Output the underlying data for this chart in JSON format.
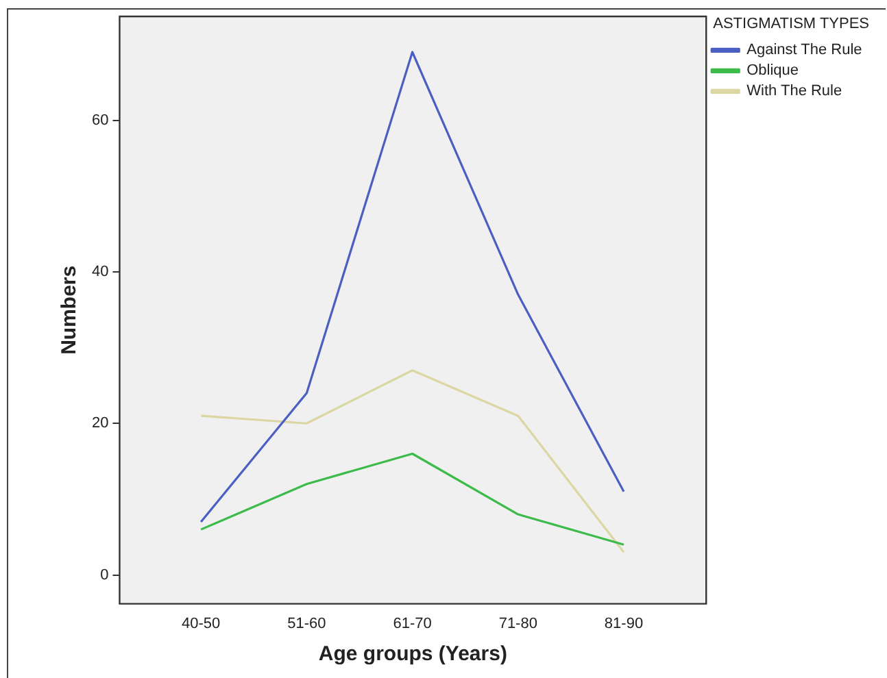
{
  "chart_data": {
    "type": "line",
    "xlabel": "Age groups (Years)",
    "ylabel": "Numbers",
    "legend_title": "ASTIGMATISM TYPES",
    "categories": [
      "40-50",
      "51-60",
      "61-70",
      "71-80",
      "81-90"
    ],
    "series": [
      {
        "name": "Against The Rule",
        "color": "#4a5fc1",
        "values": [
          7,
          24,
          69,
          37,
          11
        ]
      },
      {
        "name": "Oblique",
        "color": "#3dbb4a",
        "values": [
          6,
          12,
          16,
          8,
          4
        ]
      },
      {
        "name": "With The Rule",
        "color": "#dcd6a3",
        "values": [
          21,
          20,
          27,
          21,
          3
        ]
      }
    ],
    "ylim": [
      -3.8,
      73.7
    ],
    "yticks": [
      0,
      20,
      40,
      60
    ],
    "grid": false,
    "legend": "top right",
    "marker": "none",
    "line_style": "solid"
  }
}
